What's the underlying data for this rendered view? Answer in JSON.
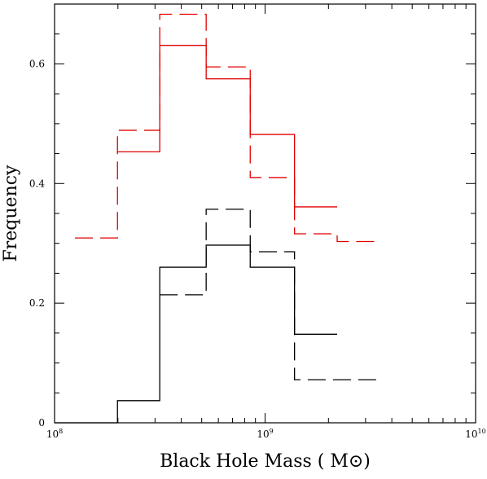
{
  "chart_data": {
    "type": "histogram",
    "title": "",
    "xlabel": "Black Hole Mass ( M⊙)",
    "ylabel": "Frequency",
    "x_scale": "log",
    "xlim": [
      100000000.0,
      10000000000.0
    ],
    "ylim": [
      0,
      0.7
    ],
    "grid": false,
    "legend": "none",
    "x_tick_labels": [
      {
        "value": 100000000.0,
        "base": "10",
        "exp": "8"
      },
      {
        "value": 1000000000.0,
        "base": "10",
        "exp": "9"
      },
      {
        "value": 10000000000.0,
        "base": "10",
        "exp": "10"
      }
    ],
    "y_ticks": [
      0,
      0.2,
      0.4,
      0.6
    ],
    "y_tick_labels": [
      "0",
      "0.2",
      "0.4",
      "0.6"
    ],
    "series": [
      {
        "color": "#e00000",
        "style": "solid",
        "edges": [
          199000000.0,
          316000000.0,
          525000000.0,
          850000000.0,
          1380000000.0,
          2200000000.0
        ],
        "values": [
          0.453,
          0.631,
          0.575,
          0.482,
          0.361
        ]
      },
      {
        "color": "#e00000",
        "style": "dashed",
        "edges": [
          125000000.0,
          199000000.0,
          316000000.0,
          525000000.0,
          850000000.0,
          1380000000.0,
          2200000000.0,
          3500000000.0
        ],
        "values": [
          0.309,
          0.489,
          0.683,
          0.595,
          0.41,
          0.316,
          0.303
        ]
      },
      {
        "color": "#000000",
        "style": "solid",
        "edges": [
          100000000.0,
          199000000.0,
          316000000.0,
          525000000.0,
          850000000.0,
          1380000000.0,
          2200000000.0
        ],
        "values": [
          0,
          0.037,
          0.26,
          0.297,
          0.26,
          0.148
        ]
      },
      {
        "color": "#000000",
        "style": "dashed",
        "edges": [
          316000000.0,
          525000000.0,
          850000000.0,
          1380000000.0,
          3600000000.0
        ],
        "values": [
          0.214,
          0.357,
          0.286,
          0.072
        ]
      }
    ]
  }
}
